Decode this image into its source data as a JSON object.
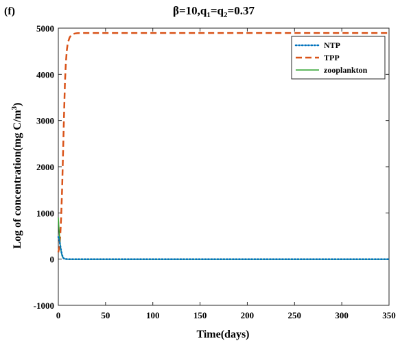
{
  "panel_label": "(f)",
  "chart_data": {
    "type": "line",
    "title": "β=10,q1=q2=0.37",
    "title_parts": {
      "main": "β=10,q",
      "sub1": "1",
      "mid": "=q",
      "sub2": "2",
      "tail": "=0.37"
    },
    "xlabel": "Time(days)",
    "ylabel": "Log of concentration(mg C/m3)",
    "ylabel_parts": {
      "main": "Log of concentration(mg C/m",
      "sup": "3",
      "tail": ")"
    },
    "xlim": [
      0,
      350
    ],
    "ylim": [
      -1000,
      5000
    ],
    "x_ticks": [
      0,
      50,
      100,
      150,
      200,
      250,
      300,
      350
    ],
    "y_ticks": [
      -1000,
      0,
      1000,
      2000,
      3000,
      4000,
      5000
    ],
    "grid": false,
    "legend_position": "top-right",
    "series": [
      {
        "name": "NTP",
        "color": "#0072BD",
        "style": "dotted",
        "x": [
          0,
          1,
          2,
          3,
          4,
          5,
          6,
          8,
          10,
          20,
          50,
          100,
          200,
          350
        ],
        "y": [
          480,
          420,
          300,
          180,
          90,
          35,
          10,
          2,
          0,
          0,
          0,
          0,
          0,
          0
        ]
      },
      {
        "name": "TPP",
        "color": "#D95319",
        "style": "dashed",
        "x": [
          0,
          1,
          2,
          3,
          4,
          5,
          6,
          7,
          8,
          9,
          10,
          12,
          14,
          16,
          18,
          20,
          25,
          30,
          50,
          100,
          200,
          350
        ],
        "y": [
          150,
          250,
          500,
          900,
          1500,
          2300,
          3100,
          3800,
          4250,
          4520,
          4680,
          4800,
          4855,
          4875,
          4885,
          4890,
          4893,
          4895,
          4895,
          4895,
          4895,
          4895
        ]
      },
      {
        "name": "zooplankton",
        "color": "#2CA02C",
        "style": "solid",
        "x": [
          0,
          1,
          2,
          3,
          4,
          5,
          6,
          8,
          10,
          20,
          50,
          100,
          200,
          350
        ],
        "y": [
          900,
          560,
          320,
          160,
          70,
          25,
          8,
          2,
          0,
          0,
          0,
          0,
          0,
          0
        ]
      }
    ]
  }
}
